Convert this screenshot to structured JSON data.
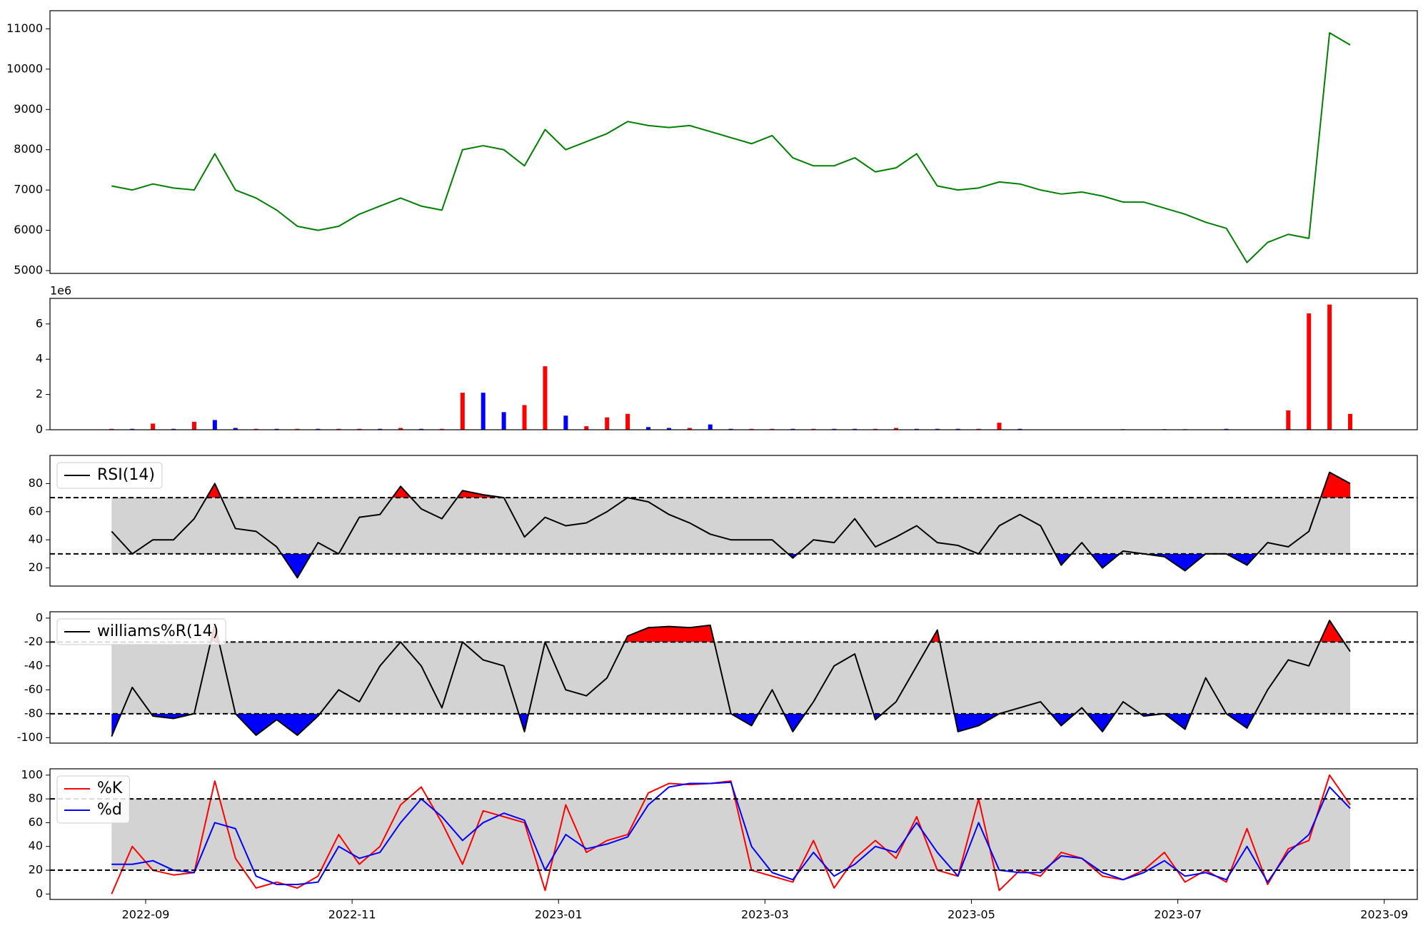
{
  "chart_data": [
    {
      "type": "line",
      "xlim": [
        8.073,
        21.32
      ],
      "ylim": [
        4930,
        11450
      ],
      "yticks": [
        5000,
        6000,
        7000,
        8000,
        9000,
        10000,
        11000
      ],
      "x": [
        8.67,
        8.87,
        9.07,
        9.27,
        9.47,
        9.67,
        9.87,
        10.07,
        10.27,
        10.47,
        10.67,
        10.87,
        11.07,
        11.27,
        11.47,
        11.67,
        11.87,
        12.07,
        12.27,
        12.47,
        12.67,
        12.87,
        13.07,
        13.27,
        13.47,
        13.67,
        13.87,
        14.07,
        14.27,
        14.47,
        14.67,
        14.87,
        15.07,
        15.27,
        15.47,
        15.67,
        15.87,
        16.07,
        16.27,
        16.47,
        16.67,
        16.87,
        17.07,
        17.27,
        17.47,
        17.67,
        17.87,
        18.07,
        18.27,
        18.47,
        18.67,
        18.87,
        19.07,
        19.27,
        19.47,
        19.67,
        19.87,
        20.07,
        20.27,
        20.47,
        20.67
      ],
      "series": [
        {
          "color": "green",
          "values": [
            7100,
            7000,
            7150,
            7050,
            7000,
            7900,
            7000,
            6800,
            6500,
            6100,
            6000,
            6100,
            6400,
            6600,
            6800,
            6600,
            6500,
            8000,
            8100,
            8000,
            7600,
            8500,
            8000,
            8200,
            8400,
            8700,
            8600,
            8550,
            8600,
            8450,
            8300,
            8150,
            8350,
            7800,
            7600,
            7600,
            7800,
            7450,
            7550,
            7900,
            7100,
            7000,
            7050,
            7200,
            7150,
            7000,
            6900,
            6950,
            6850,
            6700,
            6700,
            6550,
            6400,
            6200,
            6050,
            5200,
            5700,
            5900,
            5800,
            10900,
            10600
          ]
        }
      ]
    },
    {
      "type": "bar",
      "offset_label": "1e6",
      "xlim": [
        8.073,
        21.32
      ],
      "ylim": [
        0,
        7.45
      ],
      "yticks": [
        0,
        2,
        4,
        6
      ],
      "x": [
        8.67,
        8.87,
        9.07,
        9.27,
        9.47,
        9.67,
        9.87,
        10.07,
        10.27,
        10.47,
        10.67,
        10.87,
        11.07,
        11.27,
        11.47,
        11.67,
        11.87,
        12.07,
        12.27,
        12.47,
        12.67,
        12.87,
        13.07,
        13.27,
        13.47,
        13.67,
        13.87,
        14.07,
        14.27,
        14.47,
        14.67,
        14.87,
        15.07,
        15.27,
        15.47,
        15.67,
        15.87,
        16.07,
        16.27,
        16.47,
        16.67,
        16.87,
        17.07,
        17.27,
        17.47,
        17.67,
        17.87,
        18.07,
        18.27,
        18.47,
        18.67,
        18.87,
        19.07,
        19.27,
        19.47,
        19.67,
        19.87,
        20.07,
        20.27,
        20.47,
        20.67
      ],
      "series": [
        {
          "color": "red",
          "values": [
            0.05,
            null,
            0.35,
            null,
            0.45,
            null,
            null,
            0.05,
            null,
            0.05,
            null,
            0.05,
            0.05,
            null,
            0.1,
            null,
            0.05,
            2.1,
            null,
            null,
            1.4,
            3.6,
            null,
            0.2,
            0.7,
            0.9,
            null,
            null,
            0.1,
            null,
            null,
            0.05,
            0.05,
            null,
            0.05,
            null,
            null,
            0.05,
            0.1,
            null,
            null,
            null,
            0.05,
            0.4,
            null,
            0.02,
            null,
            null,
            0.02,
            null,
            0.02,
            null,
            null,
            0.02,
            null,
            0.02,
            0.02,
            1.1,
            6.6,
            7.1,
            0.9
          ]
        },
        {
          "color": "blue",
          "values": [
            null,
            0.05,
            null,
            0.05,
            null,
            0.55,
            0.1,
            null,
            0.05,
            null,
            0.05,
            null,
            null,
            0.05,
            null,
            0.05,
            null,
            null,
            2.1,
            1.0,
            null,
            null,
            0.8,
            null,
            null,
            null,
            0.15,
            0.1,
            null,
            0.3,
            0.05,
            null,
            null,
            0.05,
            null,
            0.05,
            0.05,
            null,
            null,
            0.05,
            0.05,
            0.05,
            null,
            null,
            0.05,
            null,
            0.02,
            0.02,
            null,
            0.03,
            null,
            0.03,
            0.03,
            null,
            0.05,
            null,
            null,
            null,
            null,
            null,
            null
          ]
        }
      ]
    },
    {
      "type": "line",
      "xlim": [
        8.073,
        21.32
      ],
      "ylim": [
        7.1,
        100
      ],
      "yticks": [
        20,
        40,
        60,
        80
      ],
      "hlines": [
        70,
        30
      ],
      "band_color": "#d3d3d3",
      "fill_above_color": "red",
      "fill_below_color": "blue",
      "legend": true,
      "x": [
        8.67,
        8.87,
        9.07,
        9.27,
        9.47,
        9.67,
        9.87,
        10.07,
        10.27,
        10.47,
        10.67,
        10.87,
        11.07,
        11.27,
        11.47,
        11.67,
        11.87,
        12.07,
        12.27,
        12.47,
        12.67,
        12.87,
        13.07,
        13.27,
        13.47,
        13.67,
        13.87,
        14.07,
        14.27,
        14.47,
        14.67,
        14.87,
        15.07,
        15.27,
        15.47,
        15.67,
        15.87,
        16.07,
        16.27,
        16.47,
        16.67,
        16.87,
        17.07,
        17.27,
        17.47,
        17.67,
        17.87,
        18.07,
        18.27,
        18.47,
        18.67,
        18.87,
        19.07,
        19.27,
        19.47,
        19.67,
        19.87,
        20.07,
        20.27,
        20.47,
        20.67
      ],
      "series": [
        {
          "name": "RSI(14)",
          "color": "black",
          "values": [
            46,
            30,
            40,
            40,
            55,
            80,
            48,
            46,
            35,
            13,
            38,
            30,
            56,
            58,
            78,
            62,
            55,
            75,
            72,
            70,
            42,
            56,
            50,
            52,
            60,
            70,
            67,
            58,
            52,
            44,
            40,
            40,
            40,
            27,
            40,
            38,
            55,
            35,
            42,
            50,
            38,
            36,
            30,
            50,
            58,
            50,
            22,
            38,
            20,
            32,
            30,
            28,
            18,
            30,
            30,
            22,
            38,
            35,
            46,
            88,
            80
          ]
        }
      ]
    },
    {
      "type": "line",
      "xlim": [
        8.073,
        21.32
      ],
      "ylim": [
        -104.6,
        5.3
      ],
      "yticks": [
        0,
        -20,
        -40,
        -60,
        -80,
        -100
      ],
      "hlines": [
        -20,
        -80
      ],
      "band_color": "#d3d3d3",
      "fill_above_color": "red",
      "fill_below_color": "blue",
      "legend": true,
      "x": [
        8.67,
        8.87,
        9.07,
        9.27,
        9.47,
        9.67,
        9.87,
        10.07,
        10.27,
        10.47,
        10.67,
        10.87,
        11.07,
        11.27,
        11.47,
        11.67,
        11.87,
        12.07,
        12.27,
        12.47,
        12.67,
        12.87,
        13.07,
        13.27,
        13.47,
        13.67,
        13.87,
        14.07,
        14.27,
        14.47,
        14.67,
        14.87,
        15.07,
        15.27,
        15.47,
        15.67,
        15.87,
        16.07,
        16.27,
        16.47,
        16.67,
        16.87,
        17.07,
        17.27,
        17.47,
        17.67,
        17.87,
        18.07,
        18.27,
        18.47,
        18.67,
        18.87,
        19.07,
        19.27,
        19.47,
        19.67,
        19.87,
        20.07,
        20.27,
        20.47,
        20.67
      ],
      "series": [
        {
          "name": "williams%R(14)",
          "color": "black",
          "values": [
            -99,
            -58,
            -82,
            -84,
            -80,
            -5,
            -80,
            -98,
            -85,
            -98,
            -82,
            -60,
            -70,
            -40,
            -20,
            -40,
            -75,
            -20,
            -35,
            -40,
            -95,
            -20,
            -60,
            -65,
            -50,
            -15,
            -8,
            -7,
            -8,
            -6,
            -80,
            -90,
            -60,
            -95,
            -70,
            -40,
            -30,
            -85,
            -70,
            -40,
            -10,
            -95,
            -90,
            -80,
            -75,
            -70,
            -90,
            -75,
            -95,
            -70,
            -82,
            -80,
            -93,
            -50,
            -80,
            -92,
            -60,
            -35,
            -40,
            -2,
            -28
          ]
        }
      ]
    },
    {
      "type": "line",
      "xlim": [
        8.073,
        21.32
      ],
      "ylim": [
        -4.6,
        105.3
      ],
      "yticks": [
        0,
        20,
        40,
        60,
        80,
        100
      ],
      "hlines": [
        80,
        20
      ],
      "band_color": "#d3d3d3",
      "legend": true,
      "xticks": [
        {
          "value": 9,
          "label": "2022-09"
        },
        {
          "value": 11,
          "label": "2022-11"
        },
        {
          "value": 13,
          "label": "2023-01"
        },
        {
          "value": 15,
          "label": "2023-03"
        },
        {
          "value": 17,
          "label": "2023-05"
        },
        {
          "value": 19,
          "label": "2023-07"
        },
        {
          "value": 21,
          "label": "2023-09"
        }
      ],
      "x": [
        8.67,
        8.87,
        9.07,
        9.27,
        9.47,
        9.67,
        9.87,
        10.07,
        10.27,
        10.47,
        10.67,
        10.87,
        11.07,
        11.27,
        11.47,
        11.67,
        11.87,
        12.07,
        12.27,
        12.47,
        12.67,
        12.87,
        13.07,
        13.27,
        13.47,
        13.67,
        13.87,
        14.07,
        14.27,
        14.47,
        14.67,
        14.87,
        15.07,
        15.27,
        15.47,
        15.67,
        15.87,
        16.07,
        16.27,
        16.47,
        16.67,
        16.87,
        17.07,
        17.27,
        17.47,
        17.67,
        17.87,
        18.07,
        18.27,
        18.47,
        18.67,
        18.87,
        19.07,
        19.27,
        19.47,
        19.67,
        19.87,
        20.07,
        20.27,
        20.47,
        20.67
      ],
      "series": [
        {
          "name": "%K",
          "color": "red",
          "values": [
            0,
            40,
            20,
            16,
            18,
            95,
            30,
            5,
            10,
            5,
            15,
            50,
            25,
            40,
            75,
            90,
            60,
            25,
            70,
            65,
            60,
            3,
            75,
            35,
            45,
            50,
            85,
            93,
            92,
            93,
            95,
            20,
            15,
            10,
            45,
            5,
            30,
            45,
            30,
            65,
            20,
            15,
            80,
            3,
            20,
            15,
            35,
            30,
            15,
            12,
            20,
            35,
            10,
            20,
            10,
            55,
            8,
            38,
            45,
            100,
            75
          ]
        },
        {
          "name": "%d",
          "color": "blue",
          "values": [
            25,
            25,
            28,
            20,
            18,
            60,
            55,
            15,
            8,
            8,
            10,
            40,
            30,
            35,
            60,
            80,
            65,
            45,
            60,
            68,
            62,
            20,
            50,
            38,
            42,
            48,
            75,
            90,
            93,
            93,
            94,
            40,
            18,
            12,
            35,
            15,
            25,
            40,
            35,
            60,
            35,
            15,
            60,
            20,
            18,
            18,
            32,
            30,
            18,
            12,
            18,
            28,
            15,
            18,
            12,
            40,
            10,
            35,
            50,
            90,
            72
          ]
        }
      ]
    }
  ]
}
